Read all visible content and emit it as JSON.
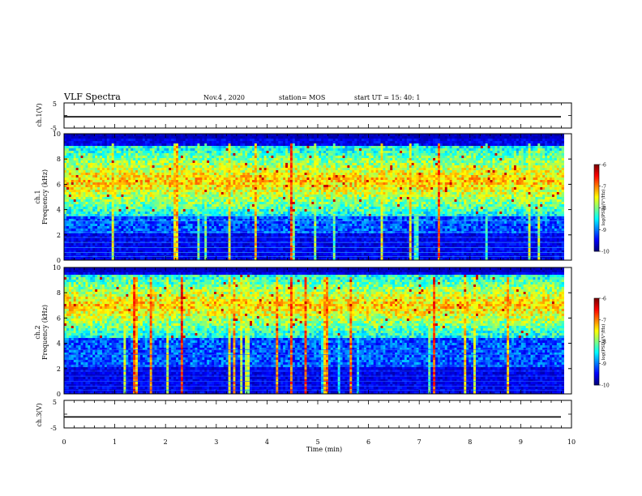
{
  "header": {
    "title": "VLF Spectra",
    "date": "Nov.4 , 2020",
    "station": "station= MOS",
    "start": "start UT = 15: 40: 1"
  },
  "chart_data": [
    {
      "type": "line",
      "name": "ch1-waveform",
      "ylabel": "ch.1(V)",
      "yticks": [
        "5",
        "0",
        "-5"
      ],
      "ylim": [
        -5,
        5
      ],
      "xlim": [
        0,
        10
      ],
      "level": -0.5
    },
    {
      "type": "heatmap",
      "name": "ch1-spectrogram",
      "ylabel_top": "ch.1",
      "ylabel": "Frequency (kHz)",
      "yticks": [
        "0",
        "2",
        "4",
        "6",
        "8",
        "10"
      ],
      "ylim": [
        0,
        10
      ],
      "xlim": [
        0,
        9.85
      ],
      "colorbar": {
        "label": "log(PSD)(V²/Hz)",
        "ticks": [
          "-6",
          "-7",
          "-8",
          "-9",
          "-10"
        ],
        "range": [
          -10,
          -6
        ]
      },
      "band_khz": [
        3.5,
        9.0
      ]
    },
    {
      "type": "heatmap",
      "name": "ch2-spectrogram",
      "ylabel_top": "ch.2",
      "ylabel": "Frequency (kHz)",
      "yticks": [
        "0",
        "2",
        "4",
        "6",
        "8",
        "10"
      ],
      "ylim": [
        0,
        10
      ],
      "xlim": [
        0,
        9.85
      ],
      "colorbar": {
        "label": "log(PSD)(V²/Hz)",
        "ticks": [
          "-6",
          "-7",
          "-8",
          "-9",
          "-10"
        ],
        "range": [
          -10,
          -6
        ]
      },
      "band_khz": [
        4.5,
        9.5
      ]
    },
    {
      "type": "line",
      "name": "ch3-waveform",
      "ylabel": "ch.3(V)",
      "yticks": [
        "5",
        "0",
        "-5"
      ],
      "ylim": [
        -5,
        5
      ],
      "xlim": [
        0,
        10
      ],
      "level": -1.0
    }
  ],
  "xaxis": {
    "label": "Time (min)",
    "ticks": [
      "0",
      "1",
      "2",
      "3",
      "4",
      "5",
      "6",
      "7",
      "8",
      "9",
      "10"
    ],
    "range": [
      0,
      10
    ]
  }
}
